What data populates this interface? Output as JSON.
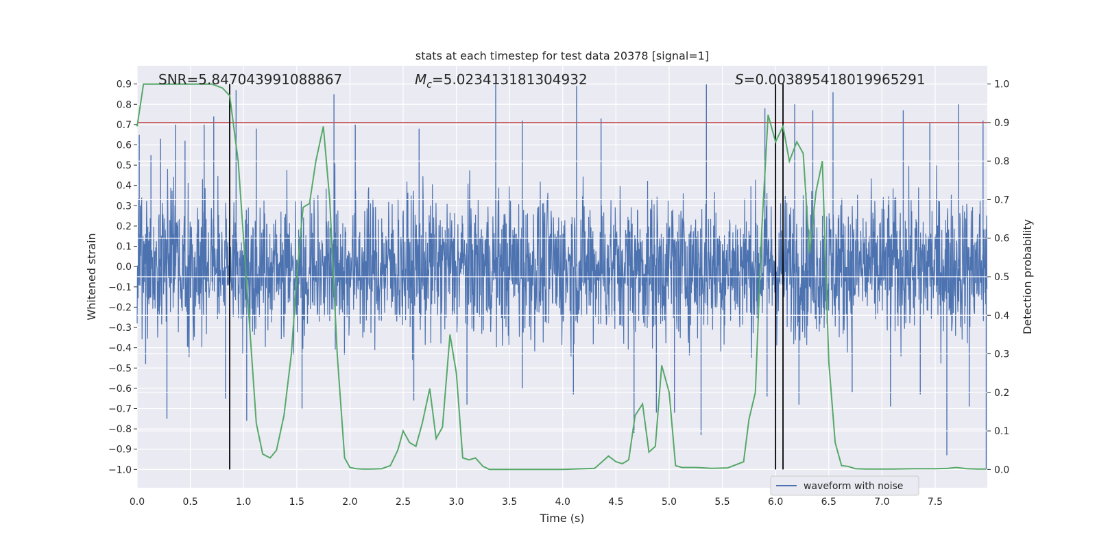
{
  "chart_data": {
    "type": "line",
    "title": "stats at each timestep for test data 20378 [signal=1]",
    "xlabel": "Time (s)",
    "ylabel_left": "Whitened strain",
    "ylabel_right": "Detection probability",
    "xlim": [
      0.0,
      7.99
    ],
    "ylim_left": [
      -1.09,
      0.99
    ],
    "ylim_right": [
      0.0,
      1.0
    ],
    "x_ticks": [
      0.0,
      0.5,
      1.0,
      1.5,
      2.0,
      2.5,
      3.0,
      3.5,
      4.0,
      4.5,
      5.0,
      5.5,
      6.0,
      6.5,
      7.0,
      7.5
    ],
    "x_tick_labels": [
      "0.0",
      "0.5",
      "1.0",
      "1.5",
      "2.0",
      "2.5",
      "3.0",
      "3.5",
      "4.0",
      "4.5",
      "5.0",
      "5.5",
      "6.0",
      "6.5",
      "7.0",
      "7.5"
    ],
    "y_left_ticks": [
      0.9,
      0.8,
      0.7,
      0.6,
      0.5,
      0.4,
      0.3,
      0.2,
      0.1,
      0.0,
      -0.1,
      -0.2,
      -0.3,
      -0.4,
      -0.5,
      -0.6,
      -0.7,
      -0.8,
      -0.9,
      -1.0
    ],
    "y_left_tick_labels": [
      "0.9",
      "0.8",
      "0.7",
      "0.6",
      "0.5",
      "0.4",
      "0.3",
      "0.2",
      "0.1",
      "0.0",
      "−0.1",
      "−0.2",
      "−0.3",
      "−0.4",
      "−0.5",
      "−0.6",
      "−0.7",
      "−0.8",
      "−0.9",
      "−1.0"
    ],
    "y_right_ticks": [
      1.0,
      0.9,
      0.8,
      0.7,
      0.6,
      0.5,
      0.4,
      0.3,
      0.2,
      0.1,
      0.0
    ],
    "y_right_tick_labels": [
      "1.0",
      "0.9",
      "0.8",
      "0.7",
      "0.6",
      "0.5",
      "0.4",
      "0.3",
      "0.2",
      "0.1",
      "0.0"
    ],
    "annotations": {
      "snr": "SNR=5.847043991088867",
      "mc_symbol": "M",
      "mc_sub": "c",
      "mc_value": "=5.023413181304932",
      "s_symbol": "S",
      "s_value": "=0.003895418019965291"
    },
    "threshold": {
      "value": 0.9,
      "axis": "right",
      "color": "#c44e52"
    },
    "vlines": [
      0.87,
      6.0,
      6.07
    ],
    "legend": {
      "label": "waveform with noise",
      "placement": "lower-right"
    },
    "waveform": {
      "name": "waveform with noise",
      "color": "#4c72b0",
      "description": "dense whitened strain noise, 0 to 8 s",
      "spikes": [
        {
          "x": 0.02,
          "y": 0.65
        },
        {
          "x": 0.13,
          "y": 0.55
        },
        {
          "x": 0.22,
          "y": 0.63
        },
        {
          "x": 0.36,
          "y": 0.7
        },
        {
          "x": 0.45,
          "y": 0.62
        },
        {
          "x": 0.63,
          "y": 0.7
        },
        {
          "x": 0.72,
          "y": 0.74
        },
        {
          "x": 0.93,
          "y": 0.87
        },
        {
          "x": 1.12,
          "y": 0.68
        },
        {
          "x": 1.85,
          "y": 0.85
        },
        {
          "x": 2.05,
          "y": 0.7
        },
        {
          "x": 2.65,
          "y": 0.68
        },
        {
          "x": 3.37,
          "y": 0.9
        },
        {
          "x": 3.62,
          "y": 0.72
        },
        {
          "x": 4.13,
          "y": 0.89
        },
        {
          "x": 4.36,
          "y": 0.73
        },
        {
          "x": 5.35,
          "y": 0.9
        },
        {
          "x": 5.9,
          "y": 0.78
        },
        {
          "x": 6.18,
          "y": 0.8
        },
        {
          "x": 6.35,
          "y": 0.77
        },
        {
          "x": 6.54,
          "y": 0.86
        },
        {
          "x": 7.2,
          "y": 0.77
        },
        {
          "x": 7.45,
          "y": 0.71
        },
        {
          "x": 7.72,
          "y": 0.8
        },
        {
          "x": 7.95,
          "y": 0.72
        },
        {
          "x": 0.08,
          "y": -0.48
        },
        {
          "x": 0.28,
          "y": -0.75
        },
        {
          "x": 0.83,
          "y": -0.65
        },
        {
          "x": 1.03,
          "y": -0.76
        },
        {
          "x": 1.55,
          "y": -0.7
        },
        {
          "x": 2.6,
          "y": -0.66
        },
        {
          "x": 3.1,
          "y": -0.68
        },
        {
          "x": 3.62,
          "y": -0.6
        },
        {
          "x": 4.1,
          "y": -0.63
        },
        {
          "x": 4.67,
          "y": -0.82
        },
        {
          "x": 4.88,
          "y": -0.72
        },
        {
          "x": 5.05,
          "y": -0.72
        },
        {
          "x": 5.3,
          "y": -0.83
        },
        {
          "x": 5.92,
          "y": -0.64
        },
        {
          "x": 6.22,
          "y": -0.68
        },
        {
          "x": 6.72,
          "y": -0.62
        },
        {
          "x": 7.08,
          "y": -0.69
        },
        {
          "x": 7.36,
          "y": -0.63
        },
        {
          "x": 7.61,
          "y": -0.93
        },
        {
          "x": 7.82,
          "y": -0.69
        },
        {
          "x": 7.98,
          "y": -1.0
        }
      ]
    },
    "detection_probability": {
      "name": "Detection probability",
      "color": "#55a868",
      "x": [
        0.0,
        0.06,
        0.12,
        0.2,
        0.3,
        0.4,
        0.5,
        0.6,
        0.7,
        0.8,
        0.87,
        0.95,
        1.05,
        1.12,
        1.18,
        1.25,
        1.31,
        1.38,
        1.45,
        1.5,
        1.56,
        1.62,
        1.68,
        1.75,
        1.81,
        1.88,
        1.95,
        2.0,
        2.06,
        2.12,
        2.2,
        2.3,
        2.38,
        2.45,
        2.5,
        2.56,
        2.62,
        2.68,
        2.75,
        2.81,
        2.87,
        2.94,
        3.0,
        3.06,
        3.12,
        3.18,
        3.25,
        3.31,
        3.37,
        3.45,
        3.6,
        3.8,
        4.0,
        4.2,
        4.3,
        4.37,
        4.43,
        4.5,
        4.56,
        4.62,
        4.68,
        4.75,
        4.81,
        4.87,
        4.93,
        5.0,
        5.06,
        5.12,
        5.19,
        5.25,
        5.4,
        5.55,
        5.7,
        5.75,
        5.81,
        5.87,
        5.93,
        6.0,
        6.07,
        6.13,
        6.2,
        6.26,
        6.32,
        6.38,
        6.44,
        6.5,
        6.56,
        6.62,
        6.68,
        6.75,
        6.85,
        6.95,
        7.1,
        7.3,
        7.5,
        7.62,
        7.7,
        7.8,
        7.9,
        7.98
      ],
      "y": [
        0.89,
        1.0,
        1.0,
        1.0,
        1.0,
        1.0,
        1.0,
        1.0,
        1.0,
        0.99,
        0.97,
        0.8,
        0.4,
        0.12,
        0.04,
        0.03,
        0.05,
        0.14,
        0.3,
        0.5,
        0.68,
        0.69,
        0.8,
        0.89,
        0.7,
        0.3,
        0.03,
        0.005,
        0.002,
        0.001,
        0.001,
        0.002,
        0.01,
        0.05,
        0.1,
        0.07,
        0.06,
        0.12,
        0.21,
        0.08,
        0.11,
        0.35,
        0.25,
        0.03,
        0.025,
        0.03,
        0.008,
        0.0,
        0.0,
        0.0,
        0.0,
        0.0,
        0.0,
        0.002,
        0.003,
        0.02,
        0.035,
        0.02,
        0.015,
        0.025,
        0.14,
        0.17,
        0.045,
        0.06,
        0.27,
        0.2,
        0.01,
        0.005,
        0.005,
        0.005,
        0.003,
        0.004,
        0.02,
        0.13,
        0.2,
        0.62,
        0.92,
        0.85,
        0.89,
        0.8,
        0.85,
        0.82,
        0.56,
        0.72,
        0.8,
        0.28,
        0.07,
        0.01,
        0.008,
        0.002,
        0.001,
        0.001,
        0.001,
        0.002,
        0.002,
        0.003,
        0.005,
        0.002,
        0.001,
        0.001
      ]
    }
  }
}
